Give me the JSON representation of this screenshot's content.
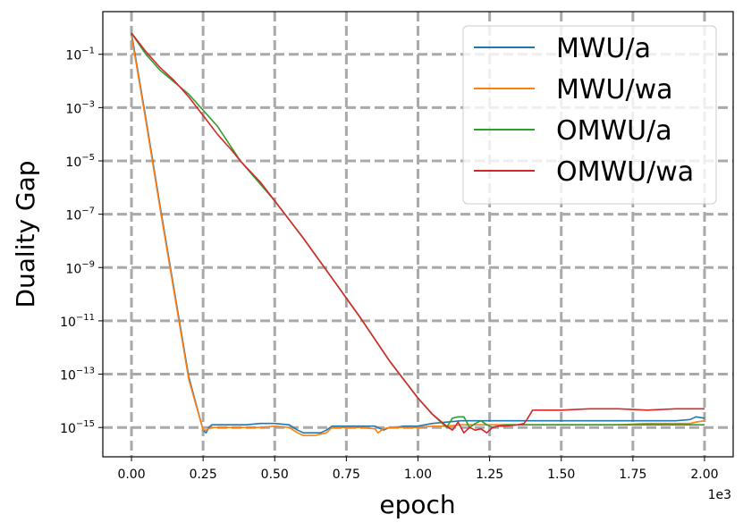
{
  "chart_data": {
    "type": "line",
    "xlabel": "epoch",
    "ylabel": "Duality Gap",
    "x_offset_label": "1e3",
    "x_scale_factor": 1000,
    "y_scale": "log",
    "xlim": [
      -0.1,
      2.1
    ],
    "ylim_log10": [
      -16.1,
      0.6
    ],
    "x_ticks": [
      0.0,
      0.25,
      0.5,
      0.75,
      1.0,
      1.25,
      1.5,
      1.75,
      2.0
    ],
    "x_tick_labels": [
      "0.00",
      "0.25",
      "0.50",
      "0.75",
      "1.00",
      "1.25",
      "1.50",
      "1.75",
      "2.00"
    ],
    "y_ticks_exp": [
      -15,
      -13,
      -11,
      -9,
      -7,
      -5,
      -3,
      -1
    ],
    "y_tick_base": "10",
    "y_tick_exponents": [
      "−1",
      "−3",
      "−5",
      "−7",
      "−9",
      "−11",
      "−13",
      "−15"
    ],
    "grid": true,
    "legend_position": "top-right",
    "series": [
      {
        "name": "MWU/a",
        "color": "#1f77b4",
        "x": [
          0.0,
          0.05,
          0.1,
          0.15,
          0.2,
          0.25,
          0.26,
          0.27,
          0.28,
          0.3,
          0.35,
          0.4,
          0.45,
          0.5,
          0.55,
          0.58,
          0.6,
          0.62,
          0.64,
          0.66,
          0.68,
          0.7,
          0.72,
          0.75,
          0.8,
          0.85,
          0.88,
          0.9,
          0.92,
          0.95,
          1.0,
          1.05,
          1.1,
          1.15,
          1.2,
          1.25,
          1.3,
          1.38,
          1.5,
          1.6,
          1.7,
          1.8,
          1.9,
          1.95,
          1.97,
          2.0
        ],
        "log10_y": [
          -0.2,
          -3.4,
          -6.7,
          -9.9,
          -13.1,
          -15.1,
          -15.2,
          -15.0,
          -14.9,
          -14.9,
          -14.9,
          -14.9,
          -14.85,
          -14.85,
          -14.9,
          -15.1,
          -15.2,
          -15.2,
          -15.2,
          -15.2,
          -15.1,
          -14.95,
          -14.95,
          -14.95,
          -14.95,
          -14.95,
          -15.1,
          -15.0,
          -15.0,
          -14.95,
          -14.95,
          -14.85,
          -14.8,
          -14.75,
          -14.75,
          -14.75,
          -14.75,
          -14.75,
          -14.75,
          -14.75,
          -14.75,
          -14.75,
          -14.75,
          -14.7,
          -14.6,
          -14.65
        ]
      },
      {
        "name": "MWU/wa",
        "color": "#ff7f0e",
        "x": [
          0.0,
          0.05,
          0.1,
          0.15,
          0.2,
          0.25,
          0.26,
          0.27,
          0.28,
          0.3,
          0.35,
          0.4,
          0.45,
          0.5,
          0.55,
          0.58,
          0.6,
          0.62,
          0.64,
          0.66,
          0.68,
          0.7,
          0.72,
          0.75,
          0.8,
          0.85,
          0.86,
          0.88,
          0.9,
          0.95,
          1.0,
          1.05,
          1.1,
          1.15,
          1.2,
          1.25,
          1.3,
          1.4,
          1.5,
          1.6,
          1.7,
          1.8,
          1.9,
          1.95,
          1.97,
          2.0
        ],
        "log10_y": [
          -0.3,
          -3.5,
          -6.8,
          -10.0,
          -13.2,
          -15.1,
          -15.1,
          -15.05,
          -15.0,
          -15.0,
          -15.0,
          -15.0,
          -15.0,
          -14.95,
          -15.0,
          -15.2,
          -15.3,
          -15.3,
          -15.3,
          -15.25,
          -15.2,
          -15.0,
          -15.0,
          -15.0,
          -15.0,
          -15.05,
          -15.2,
          -15.05,
          -15.0,
          -15.0,
          -15.0,
          -14.95,
          -14.95,
          -14.9,
          -14.9,
          -14.9,
          -14.9,
          -14.9,
          -14.9,
          -14.9,
          -14.9,
          -14.85,
          -14.85,
          -14.85,
          -14.8,
          -14.75
        ]
      },
      {
        "name": "OMWU/a",
        "color": "#2ca02c",
        "x": [
          0.0,
          0.05,
          0.1,
          0.2,
          0.3,
          0.38,
          0.5,
          0.6,
          0.7,
          0.8,
          0.9,
          1.0,
          1.05,
          1.1,
          1.12,
          1.14,
          1.16,
          1.18,
          1.2,
          1.22,
          1.24,
          1.26,
          1.28,
          1.3,
          1.4,
          1.5,
          1.6,
          1.7,
          1.8,
          1.9,
          2.0
        ],
        "log10_y": [
          -0.2,
          -1.0,
          -1.6,
          -2.5,
          -3.7,
          -5.0,
          -6.5,
          -7.9,
          -9.4,
          -10.9,
          -12.5,
          -13.9,
          -14.5,
          -15.0,
          -14.65,
          -14.6,
          -14.6,
          -15.0,
          -14.85,
          -14.75,
          -14.9,
          -15.0,
          -14.95,
          -14.9,
          -14.9,
          -14.9,
          -14.9,
          -14.9,
          -14.9,
          -14.9,
          -14.9
        ]
      },
      {
        "name": "OMWU/wa",
        "color": "#d62728",
        "x": [
          0.0,
          0.05,
          0.1,
          0.15,
          0.2,
          0.25,
          0.3,
          0.35,
          0.38,
          0.45,
          0.5,
          0.6,
          0.7,
          0.8,
          0.9,
          0.95,
          1.0,
          1.05,
          1.1,
          1.12,
          1.14,
          1.16,
          1.18,
          1.2,
          1.22,
          1.24,
          1.26,
          1.28,
          1.3,
          1.35,
          1.37,
          1.38,
          1.4,
          1.5,
          1.6,
          1.7,
          1.8,
          1.9,
          2.0
        ],
        "log10_y": [
          -0.2,
          -0.9,
          -1.5,
          -2.0,
          -2.6,
          -3.3,
          -4.0,
          -4.6,
          -5.0,
          -5.8,
          -6.5,
          -7.9,
          -9.4,
          -10.9,
          -12.5,
          -13.2,
          -13.9,
          -14.5,
          -14.95,
          -15.1,
          -14.8,
          -15.2,
          -15.0,
          -15.1,
          -15.05,
          -15.2,
          -15.0,
          -14.95,
          -14.95,
          -14.9,
          -14.85,
          -14.7,
          -14.35,
          -14.35,
          -14.3,
          -14.3,
          -14.35,
          -14.3,
          -14.3
        ]
      }
    ]
  }
}
